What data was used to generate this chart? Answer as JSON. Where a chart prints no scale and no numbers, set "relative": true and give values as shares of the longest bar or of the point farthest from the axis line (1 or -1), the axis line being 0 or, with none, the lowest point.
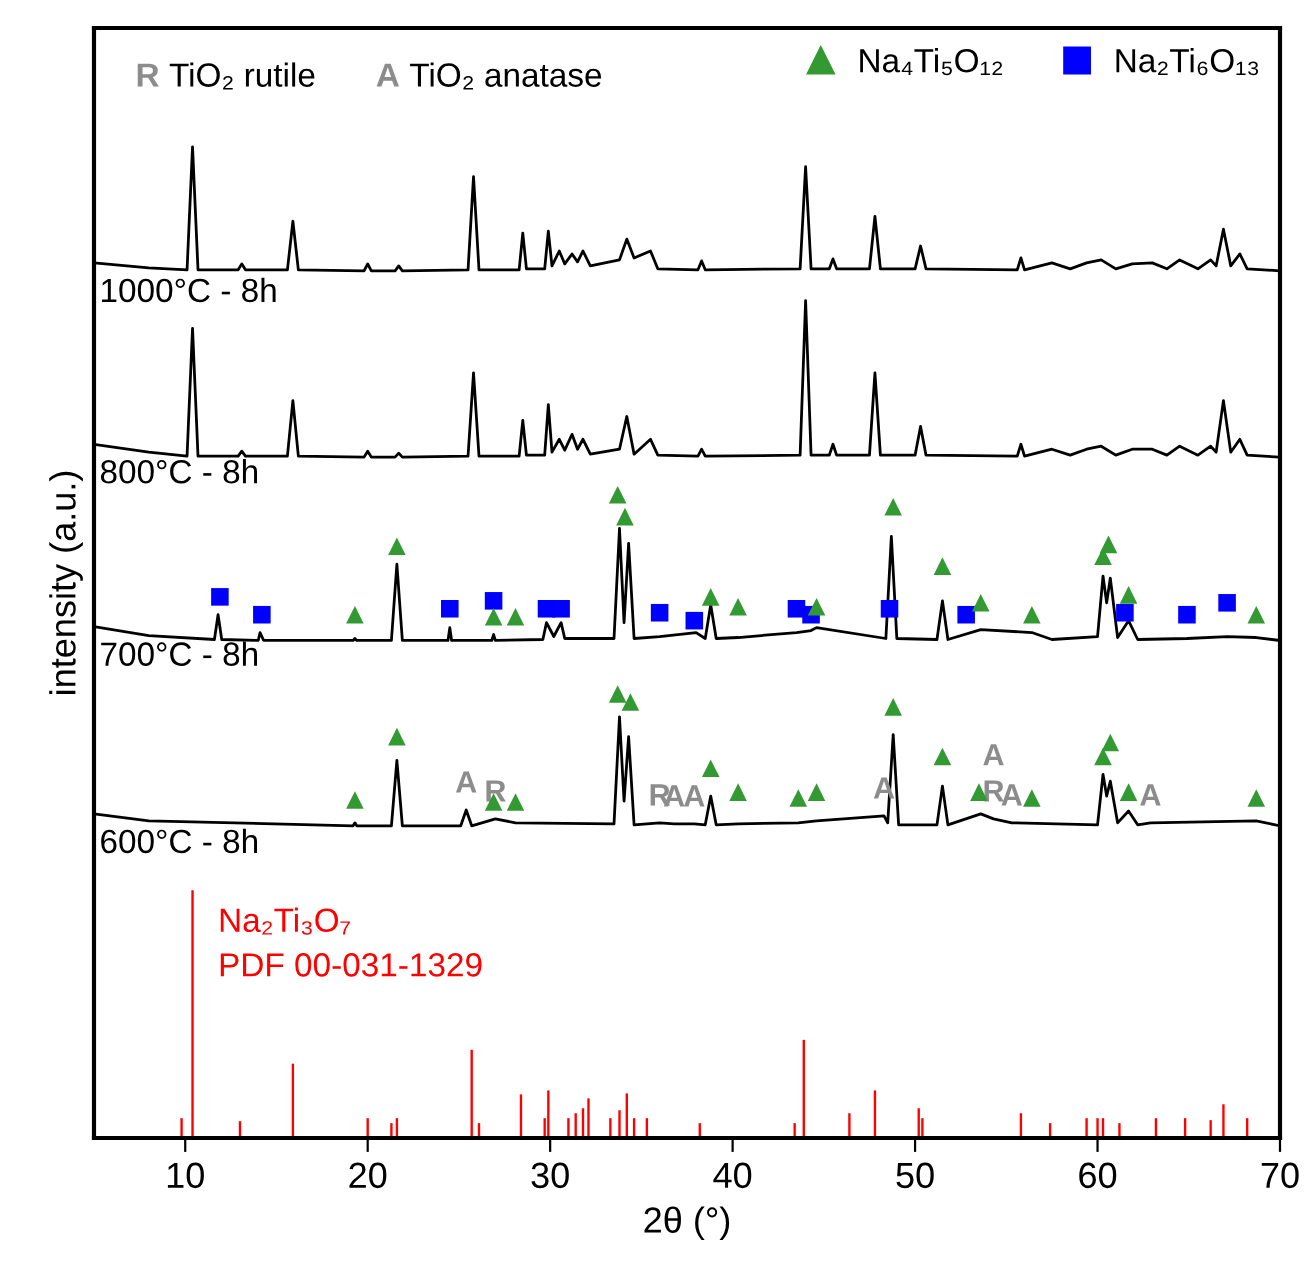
{
  "chart_data": {
    "type": "line",
    "relative": true,
    "xlabel": "2θ (°)",
    "ylabel": "intensity (a.u.)",
    "xlim": [
      5,
      70
    ],
    "xticks": [
      10,
      20,
      30,
      40,
      50,
      60,
      70
    ],
    "legend": "top",
    "grid": false,
    "annotations": [
      "PDF 00-031-1329",
      "R",
      "TiO₂ rutile",
      "A",
      "TiO₂ anatase",
      {
        "text": "R",
        "x": 27.0,
        "y": 0.322
      },
      {
        "text": "R",
        "x": 36.0,
        "y": 0.318
      },
      {
        "text": "R",
        "x": 54.3,
        "y": 0.322
      },
      {
        "text": "A",
        "x": 25.4,
        "y": 0.331
      },
      {
        "text": "A",
        "x": 36.8,
        "y": 0.317
      },
      {
        "text": "A",
        "x": 37.9,
        "y": 0.317
      },
      {
        "text": "A",
        "x": 48.3,
        "y": 0.325
      },
      {
        "text": "A",
        "x": 54.3,
        "y": 0.322
      },
      {
        "text": "A",
        "x": 55.3,
        "y": 0.318
      },
      {
        "text": "A",
        "x": 62.9,
        "y": 0.318
      }
    ],
    "series": [
      {
        "name": "1000°C - 8h",
        "color": "#000000",
        "x": [
          5,
          8,
          10.1,
          10.4,
          10.7,
          12.9,
          13.1,
          13.3,
          15.6,
          15.9,
          16.2,
          19.8,
          20.0,
          20.2,
          21.5,
          21.7,
          21.9,
          25.5,
          25.8,
          26.1,
          28.3,
          28.5,
          28.7,
          29.7,
          29.9,
          30.1,
          30.5,
          30.8,
          31.2,
          31.5,
          31.8,
          32.2,
          33.8,
          34.2,
          34.6,
          35.5,
          35.9,
          38.1,
          38.3,
          38.5,
          43.7,
          44.0,
          44.3,
          45.3,
          45.5,
          45.7,
          47.5,
          47.8,
          48.1,
          50.0,
          50.3,
          50.6,
          55.6,
          55.8,
          56.0,
          57.5,
          58.5,
          59.4,
          60.2,
          61.0,
          61.9,
          63.0,
          63.8,
          64.5,
          65.5,
          66.2,
          66.5,
          66.9,
          67.3,
          67.8,
          68.2,
          70
        ],
        "values": [
          0.883,
          0.878,
          0.876,
          1.0,
          0.876,
          0.876,
          0.882,
          0.876,
          0.876,
          0.925,
          0.876,
          0.875,
          0.882,
          0.875,
          0.875,
          0.88,
          0.875,
          0.876,
          0.97,
          0.876,
          0.876,
          0.913,
          0.877,
          0.877,
          0.915,
          0.88,
          0.895,
          0.882,
          0.892,
          0.884,
          0.895,
          0.88,
          0.886,
          0.907,
          0.888,
          0.895,
          0.877,
          0.876,
          0.885,
          0.876,
          0.877,
          0.98,
          0.877,
          0.877,
          0.887,
          0.877,
          0.877,
          0.93,
          0.877,
          0.877,
          0.9,
          0.877,
          0.876,
          0.888,
          0.876,
          0.883,
          0.877,
          0.883,
          0.886,
          0.877,
          0.882,
          0.883,
          0.877,
          0.886,
          0.877,
          0.886,
          0.88,
          0.917,
          0.88,
          0.892,
          0.877,
          0.875
        ]
      },
      {
        "name": "800°C - 8h",
        "color": "#000000",
        "x": [
          5,
          8,
          10.1,
          10.4,
          10.7,
          12.9,
          13.1,
          13.3,
          15.6,
          15.9,
          16.2,
          19.8,
          20.0,
          20.2,
          21.5,
          21.7,
          21.9,
          25.5,
          25.8,
          26.1,
          28.3,
          28.5,
          28.7,
          29.7,
          29.9,
          30.1,
          30.5,
          30.8,
          31.2,
          31.5,
          31.8,
          32.2,
          33.8,
          34.2,
          34.6,
          35.5,
          35.9,
          38.1,
          38.3,
          38.5,
          43.7,
          44.0,
          44.3,
          45.3,
          45.5,
          45.7,
          47.5,
          47.8,
          48.1,
          50.0,
          50.3,
          50.6,
          55.6,
          55.8,
          56.0,
          57.5,
          58.5,
          59.4,
          60.2,
          61.0,
          61.9,
          63.0,
          63.8,
          64.5,
          65.5,
          66.2,
          66.5,
          66.9,
          67.3,
          67.8,
          68.2,
          70
        ],
        "values": [
          0.7,
          0.692,
          0.688,
          0.817,
          0.688,
          0.688,
          0.693,
          0.688,
          0.688,
          0.744,
          0.688,
          0.687,
          0.693,
          0.687,
          0.687,
          0.691,
          0.687,
          0.688,
          0.772,
          0.688,
          0.688,
          0.724,
          0.689,
          0.689,
          0.74,
          0.692,
          0.705,
          0.694,
          0.71,
          0.695,
          0.705,
          0.69,
          0.695,
          0.728,
          0.69,
          0.705,
          0.689,
          0.688,
          0.695,
          0.688,
          0.689,
          0.845,
          0.689,
          0.689,
          0.7,
          0.689,
          0.689,
          0.772,
          0.689,
          0.689,
          0.718,
          0.689,
          0.688,
          0.7,
          0.688,
          0.695,
          0.689,
          0.695,
          0.698,
          0.689,
          0.695,
          0.695,
          0.689,
          0.698,
          0.689,
          0.698,
          0.692,
          0.744,
          0.692,
          0.705,
          0.689,
          0.687
        ]
      },
      {
        "name": "700°C - 8h",
        "color": "#000000",
        "x": [
          5,
          8,
          11.6,
          11.8,
          12.0,
          14.0,
          14.1,
          14.3,
          19.2,
          19.3,
          19.4,
          21.3,
          21.6,
          21.9,
          24.4,
          24.5,
          24.6,
          26.8,
          26.9,
          27.0,
          29.6,
          29.8,
          30.2,
          30.6,
          30.8,
          33.5,
          33.8,
          34.05,
          34.3,
          34.6,
          36.0,
          38.0,
          38.5,
          38.8,
          39.1,
          40.3,
          43.5,
          44.3,
          44.6,
          48.4,
          48.7,
          49.0,
          51.2,
          51.5,
          51.8,
          53.6,
          56.4,
          57.5,
          60.0,
          60.3,
          60.5,
          60.7,
          61.1,
          61.7,
          62.2,
          64.9,
          67.1,
          68.7,
          70
        ],
        "values": [
          0.516,
          0.507,
          0.503,
          0.528,
          0.503,
          0.502,
          0.51,
          0.502,
          0.502,
          0.504,
          0.502,
          0.502,
          0.579,
          0.502,
          0.502,
          0.515,
          0.502,
          0.502,
          0.508,
          0.502,
          0.503,
          0.52,
          0.506,
          0.52,
          0.504,
          0.504,
          0.615,
          0.52,
          0.6,
          0.504,
          0.506,
          0.51,
          0.504,
          0.538,
          0.504,
          0.505,
          0.51,
          0.512,
          0.515,
          0.504,
          0.607,
          0.504,
          0.503,
          0.542,
          0.503,
          0.513,
          0.51,
          0.503,
          0.506,
          0.567,
          0.54,
          0.565,
          0.505,
          0.522,
          0.503,
          0.504,
          0.506,
          0.505,
          0.502
        ]
      },
      {
        "name": "600°C - 8h",
        "color": "#000000",
        "x": [
          5,
          8,
          19.2,
          19.3,
          19.4,
          21.3,
          21.6,
          21.9,
          25.1,
          25.4,
          25.7,
          27.0,
          28.1,
          33.5,
          33.8,
          34.05,
          34.3,
          34.6,
          36.0,
          36.8,
          37.9,
          38.5,
          38.8,
          39.1,
          40.3,
          43.6,
          44.6,
          48.3,
          48.5,
          48.8,
          49.1,
          51.2,
          51.5,
          51.8,
          53.6,
          54.3,
          55.3,
          60.0,
          60.3,
          60.5,
          60.7,
          61.1,
          61.7,
          62.2,
          62.9,
          68.7,
          70
        ],
        "values": [
          0.327,
          0.32,
          0.315,
          0.318,
          0.315,
          0.315,
          0.381,
          0.315,
          0.315,
          0.331,
          0.315,
          0.322,
          0.318,
          0.317,
          0.425,
          0.34,
          0.405,
          0.316,
          0.318,
          0.317,
          0.317,
          0.316,
          0.345,
          0.316,
          0.317,
          0.318,
          0.32,
          0.325,
          0.318,
          0.407,
          0.316,
          0.316,
          0.355,
          0.316,
          0.327,
          0.322,
          0.318,
          0.316,
          0.367,
          0.345,
          0.36,
          0.318,
          0.33,
          0.316,
          0.318,
          0.32,
          0.315
        ]
      },
      {
        "name": "Na₂Ti₃O₇",
        "type": "bar",
        "color": "#ff0000",
        "x": [
          9.8,
          10.4,
          13.0,
          15.9,
          20.0,
          21.3,
          21.6,
          25.7,
          26.1,
          28.4,
          29.7,
          29.9,
          31.0,
          31.4,
          31.8,
          32.1,
          33.3,
          33.8,
          34.2,
          34.6,
          35.3,
          38.2,
          43.4,
          43.9,
          46.4,
          47.8,
          50.2,
          50.4,
          55.8,
          57.4,
          59.4,
          60.0,
          60.3,
          61.2,
          63.2,
          64.8,
          66.2,
          66.9,
          68.2
        ],
        "values": [
          0.02,
          0.25,
          0.017,
          0.075,
          0.02,
          0.015,
          0.02,
          0.089,
          0.015,
          0.044,
          0.02,
          0.048,
          0.02,
          0.025,
          0.03,
          0.04,
          0.02,
          0.028,
          0.045,
          0.02,
          0.02,
          0.015,
          0.015,
          0.099,
          0.025,
          0.048,
          0.03,
          0.02,
          0.025,
          0.015,
          0.02,
          0.02,
          0.02,
          0.015,
          0.02,
          0.02,
          0.018,
          0.034,
          0.02
        ]
      },
      {
        "name": "Na₄Ti₅O₁₂",
        "type": "scatter",
        "marker": "triangle",
        "color": "#339933",
        "x": [
          19.3,
          21.6,
          26.9,
          28.1,
          33.7,
          34.1,
          38.8,
          40.3,
          44.6,
          48.8,
          51.5,
          53.6,
          56.4,
          60.3,
          60.6,
          61.7,
          68.7,
          19.3,
          21.6,
          26.9,
          28.1,
          33.7,
          34.4,
          38.8,
          40.3,
          43.6,
          44.6,
          48.8,
          51.5,
          53.5,
          56.4,
          60.3,
          60.7,
          61.7,
          68.7
        ],
        "values": [
          0.528,
          0.597,
          0.526,
          0.526,
          0.649,
          0.627,
          0.546,
          0.536,
          0.536,
          0.637,
          0.577,
          0.54,
          0.528,
          0.587,
          0.599,
          0.548,
          0.528,
          0.341,
          0.405,
          0.339,
          0.339,
          0.448,
          0.44,
          0.373,
          0.349,
          0.343,
          0.349,
          0.435,
          0.385,
          0.349,
          0.343,
          0.385,
          0.399,
          0.349,
          0.343
        ]
      },
      {
        "name": "Na₂Ti₆O₁₃",
        "type": "scatter",
        "marker": "square",
        "color": "#0000ff",
        "x": [
          11.9,
          14.2,
          24.5,
          26.9,
          29.8,
          30.6,
          36.0,
          37.9,
          43.5,
          44.3,
          48.6,
          52.8,
          61.5,
          64.9,
          67.1
        ],
        "values": [
          0.546,
          0.528,
          0.534,
          0.542,
          0.534,
          0.534,
          0.53,
          0.522,
          0.534,
          0.528,
          0.534,
          0.528,
          0.53,
          0.528,
          0.54
        ]
      }
    ]
  }
}
